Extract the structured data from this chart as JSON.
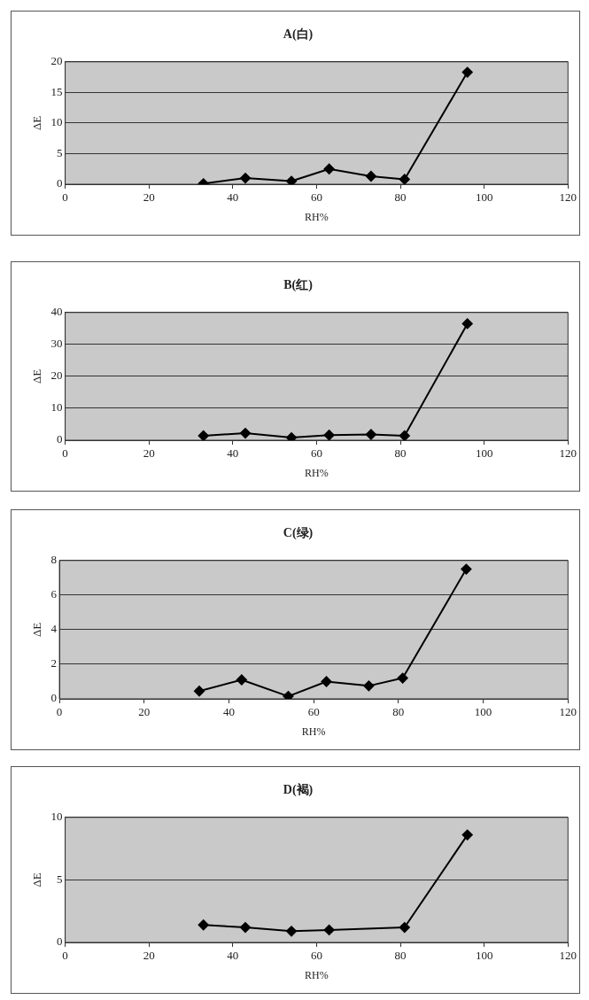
{
  "chart_data": [
    {
      "type": "line",
      "title": "A(白)",
      "xlabel": "RH%",
      "ylabel": "ΔE",
      "x": [
        33,
        43,
        54,
        63,
        73,
        81,
        96
      ],
      "values": [
        0.1,
        1.0,
        0.5,
        2.5,
        1.3,
        0.8,
        18.3
      ],
      "color": "#000000",
      "marker": "diamond",
      "grid": "y",
      "xlim": [
        0,
        120
      ],
      "xticks": [
        0,
        20,
        40,
        60,
        80,
        100,
        120
      ],
      "ylim": [
        0,
        20
      ],
      "yticks": [
        0,
        5,
        10,
        15,
        20
      ]
    },
    {
      "type": "line",
      "title": "B(红)",
      "xlabel": "RH%",
      "ylabel": "ΔE",
      "x": [
        33,
        43,
        54,
        63,
        73,
        81,
        96
      ],
      "values": [
        1.4,
        2.2,
        0.8,
        1.6,
        1.8,
        1.4,
        36.5
      ],
      "color": "#000000",
      "marker": "diamond",
      "grid": "y",
      "xlim": [
        0,
        120
      ],
      "xticks": [
        0,
        20,
        40,
        60,
        80,
        100,
        120
      ],
      "ylim": [
        0,
        40
      ],
      "yticks": [
        0,
        10,
        20,
        30,
        40
      ]
    },
    {
      "type": "line",
      "title": "C(绿)",
      "xlabel": "RH%",
      "ylabel": "ΔE",
      "x": [
        33,
        43,
        54,
        63,
        73,
        81,
        96
      ],
      "values": [
        0.45,
        1.1,
        0.15,
        1.0,
        0.75,
        1.2,
        7.5
      ],
      "color": "#000000",
      "marker": "diamond",
      "grid": "y",
      "xlim": [
        0,
        120
      ],
      "xticks": [
        0,
        20,
        40,
        60,
        80,
        100,
        120
      ],
      "ylim": [
        0,
        8
      ],
      "yticks": [
        0,
        2,
        4,
        6,
        8
      ]
    },
    {
      "type": "line",
      "title": "D(褐)",
      "xlabel": "RH%",
      "ylabel": "ΔE",
      "x": [
        33,
        43,
        54,
        63,
        81,
        96
      ],
      "values": [
        1.4,
        1.2,
        0.9,
        1.0,
        1.2,
        8.6
      ],
      "color": "#000000",
      "marker": "diamond",
      "grid": "y",
      "xlim": [
        0,
        120
      ],
      "xticks": [
        0,
        20,
        40,
        60,
        80,
        100,
        120
      ],
      "ylim": [
        0,
        10
      ],
      "yticks": [
        0,
        5,
        10
      ]
    }
  ]
}
